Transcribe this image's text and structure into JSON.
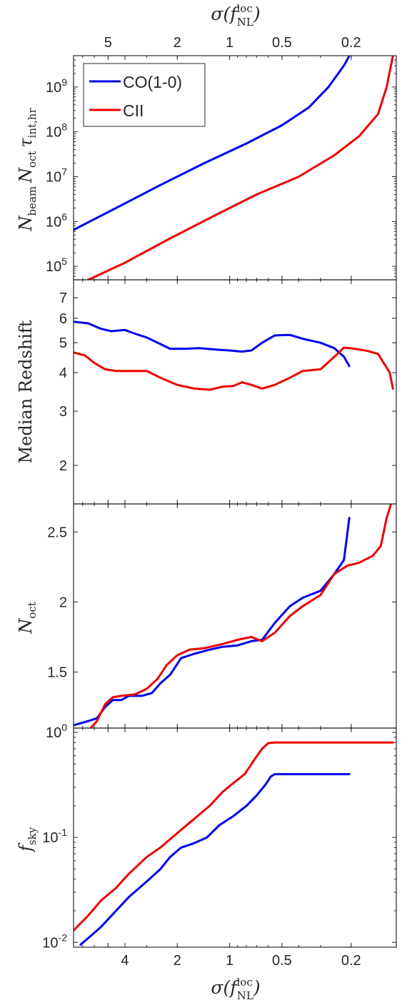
{
  "chart_data": [
    {
      "type": "line",
      "panel": "top",
      "ylabel": "N_beam N_oct τ_int,hr",
      "yscale": "log",
      "ylim": [
        50000,
        5000000000
      ],
      "y_ticks": [
        {
          "value": 100000,
          "label": "10^5"
        },
        {
          "value": 1000000,
          "label": "10^6"
        },
        {
          "value": 10000000,
          "label": "10^7"
        },
        {
          "value": 100000000,
          "label": "10^8"
        },
        {
          "value": 1000000000,
          "label": "10^9"
        }
      ],
      "top_xlabel": "σ(f_NL^loc)",
      "top_x_ticks": [
        {
          "value": 5,
          "label": "5"
        },
        {
          "value": 2,
          "label": "2"
        },
        {
          "value": 1,
          "label": "1"
        },
        {
          "value": 0.5,
          "label": "0.5"
        },
        {
          "value": 0.2,
          "label": "0.2"
        }
      ],
      "legend": {
        "placement": "top-left",
        "entries": [
          "CO(1-0)",
          "CII"
        ]
      },
      "series": [
        {
          "name": "CO(1-0)",
          "color": "#0000ee",
          "points": [
            [
              7.9,
              650000
            ],
            [
              4.5,
              2000000
            ],
            [
              2.5,
              6500000
            ],
            [
              1.4,
              20000000
            ],
            [
              0.8,
              55000000
            ],
            [
              0.5,
              140000000
            ],
            [
              0.35,
              350000000
            ],
            [
              0.27,
              1000000000
            ],
            [
              0.22,
              3000000000
            ],
            [
              0.205,
              5000000000
            ]
          ]
        },
        {
          "name": "CII",
          "color": "#ee0000",
          "points": [
            [
              6.5,
              50000
            ],
            [
              4.0,
              120000
            ],
            [
              2.2,
              420000
            ],
            [
              1.2,
              1400000
            ],
            [
              0.7,
              4000000
            ],
            [
              0.4,
              10000000
            ],
            [
              0.25,
              30000000
            ],
            [
              0.18,
              80000000
            ],
            [
              0.14,
              250000000
            ],
            [
              0.125,
              1000000000
            ],
            [
              0.115,
              5000000000
            ]
          ]
        }
      ]
    },
    {
      "type": "line",
      "panel": "middle-1",
      "ylabel": "Median Redshift",
      "yscale": "log",
      "ylim": [
        1.5,
        8
      ],
      "y_ticks": [
        {
          "value": 2,
          "label": "2"
        },
        {
          "value": 3,
          "label": "3"
        },
        {
          "value": 4,
          "label": "4"
        },
        {
          "value": 5,
          "label": "5"
        },
        {
          "value": 6,
          "label": "6"
        },
        {
          "value": 7,
          "label": "7"
        }
      ],
      "series": [
        {
          "name": "CO(1-0)",
          "color": "#0000ee",
          "points": [
            [
              7.9,
              5.85
            ],
            [
              6.5,
              5.78
            ],
            [
              5.5,
              5.55
            ],
            [
              4.8,
              5.45
            ],
            [
              4.0,
              5.5
            ],
            [
              3.5,
              5.35
            ],
            [
              3.0,
              5.2
            ],
            [
              2.5,
              4.95
            ],
            [
              2.2,
              4.78
            ],
            [
              1.8,
              4.78
            ],
            [
              1.5,
              4.8
            ],
            [
              1.2,
              4.75
            ],
            [
              1.0,
              4.72
            ],
            [
              0.85,
              4.68
            ],
            [
              0.75,
              4.72
            ],
            [
              0.65,
              5.0
            ],
            [
              0.55,
              5.28
            ],
            [
              0.45,
              5.3
            ],
            [
              0.38,
              5.15
            ],
            [
              0.3,
              5.0
            ],
            [
              0.25,
              4.8
            ],
            [
              0.22,
              4.5
            ],
            [
              0.205,
              4.2
            ]
          ]
        },
        {
          "name": "CII",
          "color": "#ee0000",
          "points": [
            [
              7.9,
              4.65
            ],
            [
              6.8,
              4.55
            ],
            [
              6.0,
              4.3
            ],
            [
              5.2,
              4.1
            ],
            [
              4.5,
              4.05
            ],
            [
              3.5,
              4.05
            ],
            [
              3.0,
              4.05
            ],
            [
              2.5,
              3.85
            ],
            [
              2.0,
              3.65
            ],
            [
              1.6,
              3.55
            ],
            [
              1.3,
              3.52
            ],
            [
              1.1,
              3.6
            ],
            [
              0.95,
              3.62
            ],
            [
              0.85,
              3.72
            ],
            [
              0.75,
              3.65
            ],
            [
              0.65,
              3.55
            ],
            [
              0.55,
              3.65
            ],
            [
              0.45,
              3.85
            ],
            [
              0.38,
              4.05
            ],
            [
              0.3,
              4.1
            ],
            [
              0.25,
              4.5
            ],
            [
              0.22,
              4.82
            ],
            [
              0.19,
              4.78
            ],
            [
              0.16,
              4.7
            ],
            [
              0.14,
              4.6
            ],
            [
              0.13,
              4.3
            ],
            [
              0.12,
              4.0
            ],
            [
              0.115,
              3.55
            ]
          ]
        }
      ]
    },
    {
      "type": "line",
      "panel": "middle-2",
      "ylabel": "N_oct",
      "yscale": "linear",
      "ylim": [
        1.1,
        2.7
      ],
      "y_ticks": [
        {
          "value": 1.5,
          "label": "1.5"
        },
        {
          "value": 2,
          "label": "2"
        },
        {
          "value": 2.5,
          "label": "2.5"
        }
      ],
      "series": [
        {
          "name": "CO(1-0)",
          "color": "#0000ee",
          "points": [
            [
              7.9,
              1.12
            ],
            [
              6.5,
              1.15
            ],
            [
              5.8,
              1.17
            ],
            [
              5.2,
              1.25
            ],
            [
              4.7,
              1.3
            ],
            [
              4.2,
              1.3
            ],
            [
              3.8,
              1.33
            ],
            [
              3.2,
              1.33
            ],
            [
              2.8,
              1.35
            ],
            [
              2.5,
              1.42
            ],
            [
              2.2,
              1.48
            ],
            [
              1.9,
              1.6
            ],
            [
              1.6,
              1.63
            ],
            [
              1.3,
              1.66
            ],
            [
              1.1,
              1.68
            ],
            [
              0.9,
              1.69
            ],
            [
              0.75,
              1.72
            ],
            [
              0.65,
              1.73
            ],
            [
              0.55,
              1.85
            ],
            [
              0.45,
              1.97
            ],
            [
              0.38,
              2.03
            ],
            [
              0.3,
              2.08
            ],
            [
              0.25,
              2.2
            ],
            [
              0.22,
              2.3
            ],
            [
              0.205,
              2.6
            ]
          ]
        },
        {
          "name": "CII",
          "color": "#ee0000",
          "points": [
            [
              6.5,
              1.08
            ],
            [
              5.8,
              1.15
            ],
            [
              5.2,
              1.27
            ],
            [
              4.7,
              1.32
            ],
            [
              4.2,
              1.33
            ],
            [
              3.5,
              1.34
            ],
            [
              3.0,
              1.38
            ],
            [
              2.6,
              1.45
            ],
            [
              2.3,
              1.55
            ],
            [
              2.0,
              1.62
            ],
            [
              1.7,
              1.66
            ],
            [
              1.4,
              1.67
            ],
            [
              1.1,
              1.7
            ],
            [
              0.9,
              1.73
            ],
            [
              0.75,
              1.75
            ],
            [
              0.65,
              1.72
            ],
            [
              0.55,
              1.78
            ],
            [
              0.45,
              1.9
            ],
            [
              0.38,
              1.97
            ],
            [
              0.3,
              2.05
            ],
            [
              0.25,
              2.2
            ],
            [
              0.21,
              2.26
            ],
            [
              0.18,
              2.28
            ],
            [
              0.15,
              2.33
            ],
            [
              0.135,
              2.4
            ],
            [
              0.125,
              2.6
            ],
            [
              0.118,
              2.7
            ]
          ]
        }
      ]
    },
    {
      "type": "line",
      "panel": "bottom",
      "ylabel": "f_sky",
      "yscale": "log",
      "ylim": [
        0.009,
        1.1
      ],
      "y_ticks": [
        {
          "value": 0.01,
          "label": "10^-2"
        },
        {
          "value": 0.1,
          "label": "10^-1"
        },
        {
          "value": 1,
          "label": "10^0"
        }
      ],
      "xlabel": "σ(f_NL^loc)",
      "x_ticks": [
        {
          "value": 4,
          "label": "4"
        },
        {
          "value": 2,
          "label": "2"
        },
        {
          "value": 1,
          "label": "1"
        },
        {
          "value": 0.5,
          "label": "0.5"
        },
        {
          "value": 0.2,
          "label": "0.2"
        }
      ],
      "series": [
        {
          "name": "CO(1-0)",
          "color": "#0000ee",
          "points": [
            [
              7.2,
              0.0095
            ],
            [
              6.5,
              0.011
            ],
            [
              5.5,
              0.014
            ],
            [
              4.5,
              0.02
            ],
            [
              3.8,
              0.027
            ],
            [
              3.0,
              0.038
            ],
            [
              2.5,
              0.05
            ],
            [
              2.2,
              0.065
            ],
            [
              1.9,
              0.08
            ],
            [
              1.6,
              0.088
            ],
            [
              1.35,
              0.1
            ],
            [
              1.15,
              0.13
            ],
            [
              0.95,
              0.16
            ],
            [
              0.8,
              0.2
            ],
            [
              0.7,
              0.25
            ],
            [
              0.62,
              0.32
            ],
            [
              0.58,
              0.38
            ],
            [
              0.55,
              0.4
            ],
            [
              0.4,
              0.4
            ],
            [
              0.3,
              0.4
            ],
            [
              0.205,
              0.4
            ]
          ]
        },
        {
          "name": "CII",
          "color": "#ee0000",
          "points": [
            [
              7.9,
              0.013
            ],
            [
              6.5,
              0.018
            ],
            [
              5.5,
              0.025
            ],
            [
              4.5,
              0.033
            ],
            [
              3.8,
              0.045
            ],
            [
              3.0,
              0.065
            ],
            [
              2.5,
              0.08
            ],
            [
              2.0,
              0.11
            ],
            [
              1.6,
              0.15
            ],
            [
              1.3,
              0.2
            ],
            [
              1.1,
              0.27
            ],
            [
              0.95,
              0.33
            ],
            [
              0.82,
              0.4
            ],
            [
              0.72,
              0.55
            ],
            [
              0.65,
              0.7
            ],
            [
              0.6,
              0.79
            ],
            [
              0.55,
              0.8
            ],
            [
              0.4,
              0.8
            ],
            [
              0.3,
              0.8
            ],
            [
              0.2,
              0.8
            ],
            [
              0.115,
              0.8
            ]
          ]
        }
      ]
    }
  ],
  "x_axis": {
    "scale": "log-reversed",
    "xlim": [
      7.9,
      0.11
    ]
  }
}
